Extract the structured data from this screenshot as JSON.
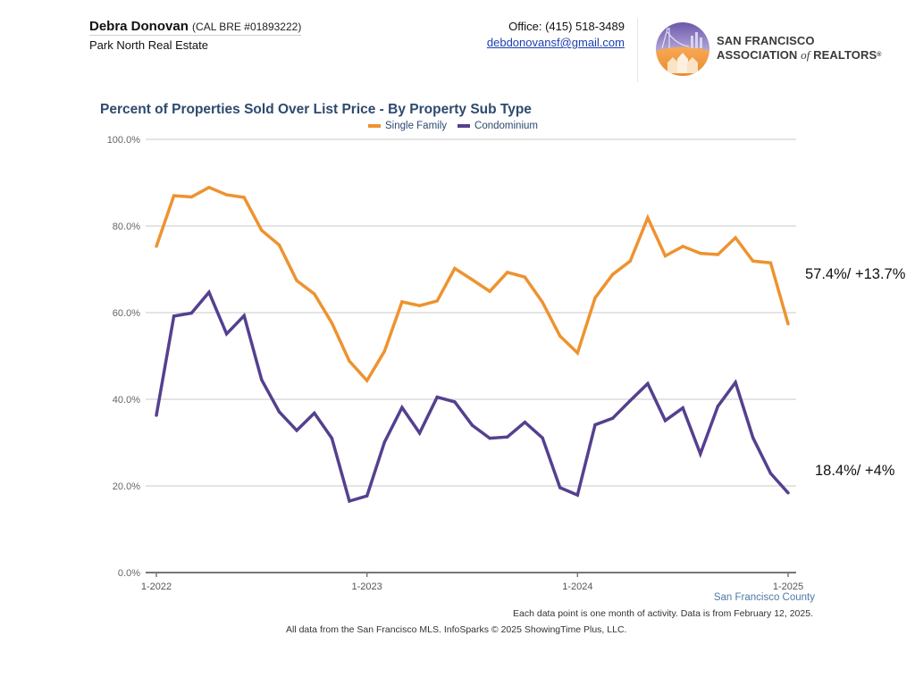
{
  "header": {
    "agent_name": "Debra Donovan",
    "license": "(CAL BRE #01893222)",
    "brokerage": "Park North Real Estate",
    "office_phone": "Office: (415) 518-3489",
    "email": "debdonovansf@gmail.com",
    "logo": {
      "icon": "sf-association-realtors-logo-icon",
      "line1": "San Francisco",
      "line2_a": "Association",
      "line2_of": "of",
      "line2_b": "Realtors",
      "registered": "®"
    }
  },
  "annotations": {
    "single_family": "57.4%/ +13.7%",
    "condominium": "18.4%/ +4%"
  },
  "footer": {
    "region": "San Francisco County",
    "note": "Each data point is one month of activity. Data is from February 12, 2025.",
    "source": "All data from the San Francisco MLS. InfoSparks © 2025 ShowingTime Plus, LLC."
  },
  "chart_data": {
    "type": "line",
    "title": "Percent of Properties Sold Over List Price - By Property Sub Type",
    "xlabel": "",
    "ylabel": "",
    "ylim": [
      0,
      100
    ],
    "y_ticks": [
      "0.0%",
      "20.0%",
      "40.0%",
      "60.0%",
      "80.0%",
      "100.0%"
    ],
    "y_tick_values": [
      0,
      20,
      40,
      60,
      80,
      100
    ],
    "x_ticks": [
      "1-2022",
      "1-2023",
      "1-2024",
      "1-2025"
    ],
    "x_tick_index": [
      0,
      12,
      24,
      36
    ],
    "grid": true,
    "legend_position": "top-center",
    "x": [
      "1-2022",
      "2-2022",
      "3-2022",
      "4-2022",
      "5-2022",
      "6-2022",
      "7-2022",
      "8-2022",
      "9-2022",
      "10-2022",
      "11-2022",
      "12-2022",
      "1-2023",
      "2-2023",
      "3-2023",
      "4-2023",
      "5-2023",
      "6-2023",
      "7-2023",
      "8-2023",
      "9-2023",
      "10-2023",
      "11-2023",
      "12-2023",
      "1-2024",
      "2-2024",
      "3-2024",
      "4-2024",
      "5-2024",
      "6-2024",
      "7-2024",
      "8-2024",
      "9-2024",
      "10-2024",
      "11-2024",
      "12-2024",
      "1-2025"
    ],
    "series": [
      {
        "name": "Single Family",
        "color": "#ee9330",
        "values": [
          75.3,
          87.0,
          86.7,
          88.9,
          87.2,
          86.6,
          79.0,
          75.6,
          67.4,
          64.3,
          57.6,
          48.8,
          44.3,
          51.1,
          62.5,
          61.6,
          62.7,
          70.2,
          67.6,
          64.9,
          69.3,
          68.2,
          62.4,
          54.6,
          50.7,
          63.4,
          68.8,
          71.9,
          81.9,
          73.1,
          75.3,
          73.7,
          73.4,
          77.3,
          71.9,
          71.5,
          57.4
        ]
      },
      {
        "name": "Condominium",
        "color": "#55408f",
        "values": [
          36.3,
          59.2,
          59.9,
          64.7,
          55.1,
          59.3,
          44.5,
          37.1,
          32.8,
          36.8,
          31.0,
          16.5,
          17.7,
          30.1,
          38.1,
          32.2,
          40.5,
          39.4,
          34.0,
          31.0,
          31.3,
          34.7,
          31.1,
          19.6,
          17.9,
          34.1,
          35.6,
          39.7,
          43.6,
          35.1,
          38.0,
          27.4,
          38.4,
          43.9,
          31.1,
          22.9,
          18.4
        ]
      }
    ]
  }
}
